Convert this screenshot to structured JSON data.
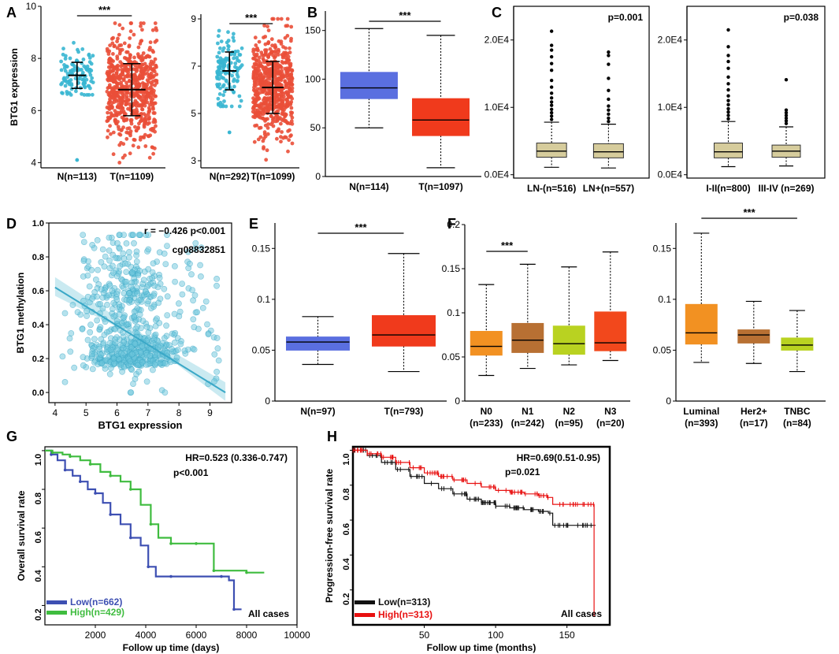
{
  "colors": {
    "normal_blue": "#5a6fe0",
    "tumor_red": "#f03a1c",
    "cyan": "#39b6d2",
    "red_scatter": "#ea4f39",
    "tan": "#d6cc9c",
    "n0": "#f29122",
    "n1": "#b87033",
    "n2": "#b9d221",
    "n3": "#f2481c",
    "luminal": "#f29122",
    "her2": "#b87033",
    "tnbc": "#b9d221",
    "km_low": "#3d4fb2",
    "km_high": "#3fbc3f",
    "pfs_low": "#111111",
    "pfs_high": "#e81010"
  },
  "panel_letters": {
    "a": "A",
    "b": "B",
    "c": "C",
    "d": "D",
    "e": "E",
    "f": "F",
    "g": "G",
    "h": "H"
  },
  "chart_data": [
    {
      "id": "A1",
      "type": "scatter",
      "ylabel": "BTG1 expression",
      "ylim": [
        3.8,
        10
      ],
      "yticks": [
        4,
        6,
        8,
        10
      ],
      "categories": [
        "N(n=113)",
        "T(n=1109)"
      ],
      "sig": "***",
      "groups": [
        {
          "name": "N",
          "n": 113,
          "mean": 7.35,
          "sd": 0.5,
          "outliers": [
            4.1
          ],
          "cmin": 6.6,
          "cmax": 8.6
        },
        {
          "name": "T",
          "n": 1109,
          "mean": 6.8,
          "sd": 1.0,
          "outliers": [],
          "cmin": 4.0,
          "cmax": 9.35
        }
      ]
    },
    {
      "id": "A2",
      "type": "scatter",
      "ylabel": "",
      "ylim": [
        2.7,
        9.2
      ],
      "yticks": [
        3,
        5,
        7,
        9
      ],
      "categories": [
        "N(n=292)",
        "T(n=1099)"
      ],
      "sig": "***",
      "groups": [
        {
          "name": "N",
          "n": 292,
          "mean": 6.8,
          "sd": 0.8,
          "outliers": [
            4.2
          ],
          "cmin": 5.3,
          "cmax": 8.5
        },
        {
          "name": "T",
          "n": 1099,
          "mean": 6.1,
          "sd": 1.1,
          "outliers": [],
          "cmin": 3.0,
          "cmax": 9.0
        }
      ]
    },
    {
      "id": "B",
      "type": "box",
      "ylim": [
        0,
        170
      ],
      "yticks": [
        0,
        50,
        100,
        150
      ],
      "categories": [
        "N(n=114)",
        "T(n=1097)"
      ],
      "sig": "***",
      "boxes": [
        {
          "min": 50,
          "q1": 80,
          "median": 91,
          "q3": 107,
          "max": 152
        },
        {
          "min": 9,
          "q1": 42,
          "median": 58,
          "q3": 80,
          "max": 145
        }
      ]
    },
    {
      "id": "C1",
      "type": "box",
      "ylim": [
        -500,
        25000
      ],
      "yticks": [
        0,
        10000,
        20000
      ],
      "ytick_labels": [
        "0.0E4",
        "1.0E4",
        "2.0E4"
      ],
      "categories": [
        "LN-(n=516)",
        "LN+(n=557)"
      ],
      "pvalue": "p=0.001",
      "boxes": [
        {
          "min": 1100,
          "q1": 2600,
          "median": 3500,
          "q3": 4700,
          "max": 7800
        },
        {
          "min": 1000,
          "q1": 2500,
          "median": 3400,
          "q3": 4600,
          "max": 7500
        }
      ],
      "outliers": [
        [
          8200,
          8700,
          9200,
          9700,
          10300,
          10800,
          11400,
          12100,
          13000,
          14000,
          15500,
          16500,
          17500,
          18500,
          19200,
          21300
        ],
        [
          7900,
          8400,
          9000,
          9600,
          10200,
          11200,
          12500,
          14300,
          16400,
          17700,
          18200
        ]
      ]
    },
    {
      "id": "C2",
      "type": "box",
      "ylim": [
        -500,
        25000
      ],
      "yticks": [
        0,
        10000,
        20000
      ],
      "ytick_labels": [
        "0.0E4",
        "1.0E4",
        "2.0E4"
      ],
      "categories": [
        "I-II(n=800)",
        "III-IV (n=269)"
      ],
      "pvalue": "p=0.038",
      "boxes": [
        {
          "min": 1200,
          "q1": 2500,
          "median": 3400,
          "q3": 4700,
          "max": 7900
        },
        {
          "min": 1300,
          "q1": 2600,
          "median": 3500,
          "q3": 4400,
          "max": 7100
        }
      ],
      "outliers": [
        [
          8300,
          8800,
          9300,
          9800,
          10400,
          11000,
          11700,
          12600,
          13500,
          14500,
          15800,
          16800,
          17700,
          19000,
          21500
        ],
        [
          7600,
          8000,
          8400,
          8800,
          9200,
          9600,
          14100
        ]
      ]
    },
    {
      "id": "D",
      "type": "scatter",
      "xlabel": "BTG1 expression",
      "ylabel": "BTG1 methylation",
      "xlim": [
        3.8,
        9.7
      ],
      "ylim": [
        -0.06,
        1.0
      ],
      "xticks": [
        4,
        5,
        6,
        7,
        8,
        9
      ],
      "yticks": [
        0.0,
        0.2,
        0.4,
        0.6,
        0.8
      ],
      "ytick_labels": [
        "0.0",
        "0.2",
        "0.4",
        "0.6",
        "0.8",
        "1.0"
      ],
      "n_points": 700,
      "fit": {
        "x0": 4.0,
        "y0": 0.62,
        "x1": 9.5,
        "y1": 0.0
      },
      "annotation_r": "r = −0.426 p<0.001",
      "annotation_probe": "cg08832851"
    },
    {
      "id": "E",
      "type": "box",
      "ylim": [
        0,
        0.175
      ],
      "yticks": [
        0,
        0.05,
        0.1,
        0.15
      ],
      "ytick_labels": [
        "0",
        "0.05",
        "0.1",
        "0.15"
      ],
      "categories": [
        "N(n=97)",
        "T(n=793)"
      ],
      "sig": "***",
      "boxes": [
        {
          "min": 0.036,
          "q1": 0.05,
          "median": 0.058,
          "q3": 0.063,
          "max": 0.083
        },
        {
          "min": 0.029,
          "q1": 0.054,
          "median": 0.065,
          "q3": 0.084,
          "max": 0.145
        }
      ]
    },
    {
      "id": "F1",
      "type": "box",
      "ylim": [
        0,
        0.2
      ],
      "yticks": [
        0,
        0.05,
        0.1,
        0.15,
        0.2
      ],
      "ytick_labels": [
        "0",
        "0.05",
        "0.1",
        "0.15",
        "0.2"
      ],
      "categories": [
        "N0",
        "N1",
        "N2",
        "N3"
      ],
      "sublabels": [
        "(n=233)",
        "(n=242)",
        "(n=95)",
        "(n=20)"
      ],
      "sig": "***",
      "boxes": [
        {
          "min": 0.029,
          "q1": 0.052,
          "median": 0.062,
          "q3": 0.079,
          "max": 0.132
        },
        {
          "min": 0.037,
          "q1": 0.055,
          "median": 0.069,
          "q3": 0.088,
          "max": 0.155
        },
        {
          "min": 0.041,
          "q1": 0.053,
          "median": 0.065,
          "q3": 0.085,
          "max": 0.152
        },
        {
          "min": 0.046,
          "q1": 0.057,
          "median": 0.066,
          "q3": 0.101,
          "max": 0.169
        }
      ]
    },
    {
      "id": "F2",
      "type": "box",
      "ylim": [
        0,
        0.175
      ],
      "yticks": [
        0,
        0.05,
        0.1,
        0.15
      ],
      "ytick_labels": [
        "0",
        "0.05",
        "0.1",
        "0.15"
      ],
      "categories": [
        "Luminal",
        "Her2+",
        "TNBC"
      ],
      "sublabels": [
        "(n=393)",
        "(n=17)",
        "(n=84)"
      ],
      "sig": "***",
      "boxes": [
        {
          "min": 0.038,
          "q1": 0.056,
          "median": 0.067,
          "q3": 0.095,
          "max": 0.165
        },
        {
          "min": 0.037,
          "q1": 0.057,
          "median": 0.065,
          "q3": 0.07,
          "max": 0.098
        },
        {
          "min": 0.029,
          "q1": 0.05,
          "median": 0.055,
          "q3": 0.062,
          "max": 0.089
        }
      ]
    },
    {
      "id": "G",
      "type": "line",
      "xlabel": "Follow up time (days)",
      "ylabel": "Overall survival rate",
      "xlim": [
        0,
        10000
      ],
      "ylim": [
        0.1,
        1.02
      ],
      "xticks": [
        2000,
        4000,
        6000,
        8000,
        10000
      ],
      "yticks": [
        0.2,
        0.4,
        0.6,
        0.8,
        1.0
      ],
      "ytick_labels": [
        "0.2",
        "0.4",
        "0.6",
        "0.8",
        "1.0"
      ],
      "hr": "HR=0.523 (0.336-0.747)",
      "pvalue": "p<0.001",
      "note": "All cases",
      "series": [
        {
          "name": "Low(n=662)",
          "x": [
            0,
            250,
            500,
            800,
            1100,
            1400,
            1700,
            2000,
            2300,
            2600,
            3000,
            3400,
            3800,
            4100,
            4400,
            5000,
            6000,
            7000,
            7300,
            7500,
            7800
          ],
          "y": [
            1.0,
            0.98,
            0.95,
            0.9,
            0.87,
            0.84,
            0.8,
            0.78,
            0.73,
            0.67,
            0.62,
            0.55,
            0.51,
            0.4,
            0.35,
            0.35,
            0.35,
            0.35,
            0.33,
            0.18,
            0.18
          ]
        },
        {
          "name": "High(n=429)",
          "x": [
            0,
            300,
            700,
            1000,
            1400,
            1800,
            2200,
            2600,
            3000,
            3400,
            3800,
            4200,
            4500,
            5000,
            5500,
            6000,
            6500,
            6700,
            7200,
            8000,
            8700
          ],
          "y": [
            1.0,
            0.99,
            0.98,
            0.97,
            0.95,
            0.93,
            0.89,
            0.87,
            0.84,
            0.8,
            0.72,
            0.62,
            0.55,
            0.52,
            0.52,
            0.52,
            0.52,
            0.38,
            0.38,
            0.37,
            0.37
          ]
        }
      ]
    },
    {
      "id": "H",
      "type": "line",
      "xlabel": "Follow up time (months)",
      "ylabel": "Progression-free  survival rate",
      "xlim": [
        0,
        180
      ],
      "ylim": [
        0,
        1.02
      ],
      "xticks": [
        50,
        100,
        150
      ],
      "yticks": [
        0.2,
        0.4,
        0.6,
        0.8,
        1.0
      ],
      "ytick_labels": [
        "0.2",
        "0.4",
        "0.6",
        "0.8",
        "1.0"
      ],
      "hr": "HR=0.69(0.51-0.95)",
      "pvalue": "p=0.021",
      "note": "All cases",
      "series": [
        {
          "name": "Low(n=313)",
          "x": [
            0,
            10,
            20,
            30,
            40,
            50,
            60,
            70,
            80,
            90,
            100,
            110,
            120,
            130,
            137,
            140,
            150,
            160,
            170
          ],
          "y": [
            1.0,
            0.97,
            0.93,
            0.89,
            0.85,
            0.81,
            0.78,
            0.75,
            0.72,
            0.7,
            0.68,
            0.67,
            0.66,
            0.65,
            0.64,
            0.57,
            0.57,
            0.57,
            0.57
          ]
        },
        {
          "name": "High(n=313)",
          "x": [
            0,
            10,
            20,
            30,
            40,
            50,
            60,
            70,
            80,
            90,
            100,
            110,
            120,
            130,
            136,
            140,
            150,
            160,
            168,
            169,
            170
          ],
          "y": [
            1.0,
            0.98,
            0.96,
            0.93,
            0.9,
            0.87,
            0.85,
            0.83,
            0.81,
            0.79,
            0.77,
            0.76,
            0.75,
            0.74,
            0.73,
            0.69,
            0.69,
            0.69,
            0.69,
            0.05,
            0.05
          ]
        }
      ]
    }
  ]
}
